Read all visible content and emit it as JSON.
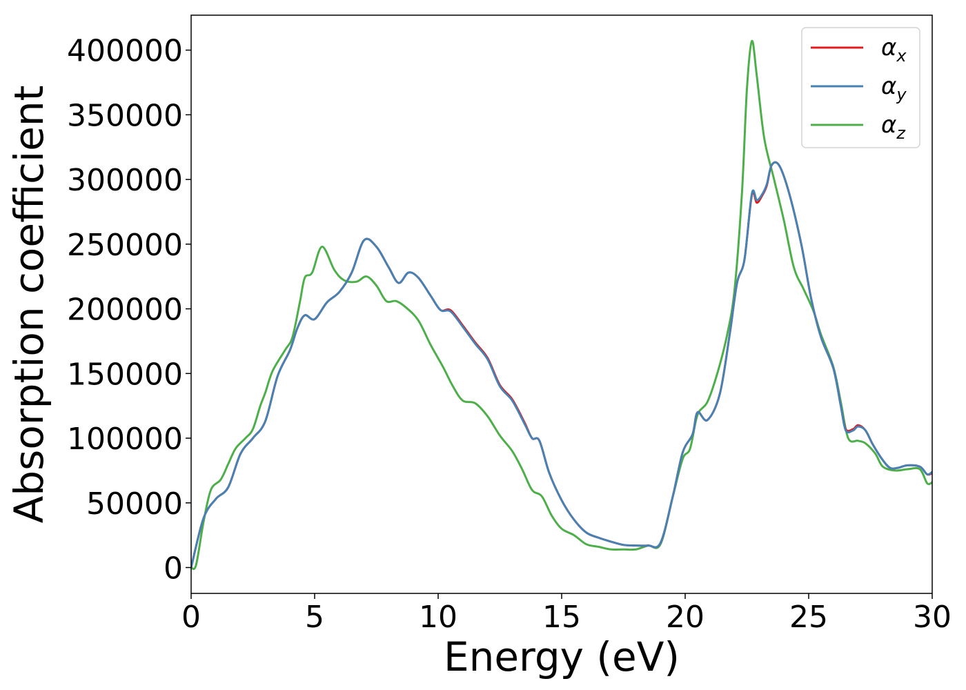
{
  "chart_data": {
    "type": "line",
    "xlabel": "Energy (eV)",
    "ylabel": "Absorption coefficient",
    "xlim": [
      0,
      30
    ],
    "ylim": [
      -20000,
      427000
    ],
    "xticks": [
      0,
      5,
      10,
      15,
      20,
      25,
      30
    ],
    "xtick_labels": [
      "0",
      "5",
      "10",
      "15",
      "20",
      "25",
      "30"
    ],
    "yticks": [
      0,
      50000,
      100000,
      150000,
      200000,
      250000,
      300000,
      350000,
      400000
    ],
    "ytick_labels": [
      "0",
      "50000",
      "100000",
      "150000",
      "200000",
      "250000",
      "300000",
      "350000",
      "400000"
    ],
    "grid": false,
    "legend_position": "top-right",
    "series": [
      {
        "name": "α",
        "sub": "x",
        "color": "#e41a1c",
        "points": [
          [
            0,
            0
          ],
          [
            0.5,
            38000
          ],
          [
            1,
            53000
          ],
          [
            1.5,
            62000
          ],
          [
            2,
            88000
          ],
          [
            2.5,
            100000
          ],
          [
            3,
            113000
          ],
          [
            3.5,
            148000
          ],
          [
            4,
            168000
          ],
          [
            4.3,
            185000
          ],
          [
            4.6,
            195000
          ],
          [
            5,
            192000
          ],
          [
            5.5,
            205000
          ],
          [
            6,
            213000
          ],
          [
            6.5,
            228000
          ],
          [
            7,
            253000
          ],
          [
            7.5,
            248000
          ],
          [
            8,
            232000
          ],
          [
            8.4,
            220000
          ],
          [
            8.8,
            228000
          ],
          [
            9.2,
            224000
          ],
          [
            9.7,
            210000
          ],
          [
            10.1,
            199000
          ],
          [
            10.5,
            199000
          ],
          [
            11,
            187000
          ],
          [
            11.5,
            174000
          ],
          [
            12,
            162000
          ],
          [
            12.5,
            141000
          ],
          [
            13,
            130000
          ],
          [
            13.5,
            112000
          ],
          [
            13.8,
            100000
          ],
          [
            14.1,
            98000
          ],
          [
            14.5,
            73000
          ],
          [
            15,
            52000
          ],
          [
            15.5,
            37000
          ],
          [
            16,
            27000
          ],
          [
            16.5,
            23000
          ],
          [
            17,
            20000
          ],
          [
            17.5,
            17500
          ],
          [
            18,
            17000
          ],
          [
            18.5,
            17000
          ],
          [
            19,
            19000
          ],
          [
            19.5,
            55000
          ],
          [
            19.9,
            89000
          ],
          [
            20.3,
            103000
          ],
          [
            20.5,
            120000
          ],
          [
            20.9,
            114000
          ],
          [
            21.4,
            134000
          ],
          [
            21.8,
            180000
          ],
          [
            22.1,
            220000
          ],
          [
            22.4,
            238000
          ],
          [
            22.7,
            288000
          ],
          [
            22.9,
            282000
          ],
          [
            23.1,
            287000
          ],
          [
            23.3,
            295000
          ],
          [
            23.5,
            311000
          ],
          [
            23.8,
            311000
          ],
          [
            24.2,
            290000
          ],
          [
            24.7,
            250000
          ],
          [
            25.1,
            208000
          ],
          [
            25.5,
            178000
          ],
          [
            26,
            154000
          ],
          [
            26.3,
            125000
          ],
          [
            26.5,
            107000
          ],
          [
            26.8,
            107000
          ],
          [
            27,
            110000
          ],
          [
            27.3,
            106000
          ],
          [
            27.6,
            95000
          ],
          [
            28,
            83000
          ],
          [
            28.3,
            77000
          ],
          [
            28.6,
            77000
          ],
          [
            29,
            79000
          ],
          [
            29.5,
            78000
          ],
          [
            29.8,
            72000
          ],
          [
            30,
            73000
          ]
        ]
      },
      {
        "name": "α",
        "sub": "y",
        "color": "#4682b4",
        "points": [
          [
            0,
            0
          ],
          [
            0.5,
            38000
          ],
          [
            1,
            53000
          ],
          [
            1.5,
            62000
          ],
          [
            2,
            88000
          ],
          [
            2.5,
            100000
          ],
          [
            3,
            113000
          ],
          [
            3.5,
            148000
          ],
          [
            4,
            168000
          ],
          [
            4.3,
            185000
          ],
          [
            4.6,
            195000
          ],
          [
            5,
            192000
          ],
          [
            5.5,
            205000
          ],
          [
            6,
            213000
          ],
          [
            6.5,
            228000
          ],
          [
            7,
            253000
          ],
          [
            7.5,
            248000
          ],
          [
            8,
            232000
          ],
          [
            8.4,
            220000
          ],
          [
            8.8,
            228000
          ],
          [
            9.2,
            224000
          ],
          [
            9.7,
            210000
          ],
          [
            10.1,
            199000
          ],
          [
            10.5,
            198000
          ],
          [
            11,
            186000
          ],
          [
            11.5,
            173000
          ],
          [
            12,
            161000
          ],
          [
            12.5,
            140000
          ],
          [
            13,
            129000
          ],
          [
            13.5,
            111000
          ],
          [
            13.8,
            100000
          ],
          [
            14.1,
            98000
          ],
          [
            14.5,
            73000
          ],
          [
            15,
            52000
          ],
          [
            15.5,
            37000
          ],
          [
            16,
            27000
          ],
          [
            16.5,
            23000
          ],
          [
            17,
            20000
          ],
          [
            17.5,
            17500
          ],
          [
            18,
            17000
          ],
          [
            18.5,
            17000
          ],
          [
            19,
            19000
          ],
          [
            19.5,
            55000
          ],
          [
            19.9,
            89000
          ],
          [
            20.3,
            103000
          ],
          [
            20.5,
            120000
          ],
          [
            20.9,
            114000
          ],
          [
            21.4,
            134000
          ],
          [
            21.8,
            180000
          ],
          [
            22.1,
            220000
          ],
          [
            22.4,
            238000
          ],
          [
            22.7,
            289000
          ],
          [
            22.9,
            284000
          ],
          [
            23.1,
            288000
          ],
          [
            23.3,
            296000
          ],
          [
            23.5,
            311000
          ],
          [
            23.8,
            311000
          ],
          [
            24.2,
            290000
          ],
          [
            24.7,
            250000
          ],
          [
            25.1,
            208000
          ],
          [
            25.5,
            178000
          ],
          [
            26,
            154000
          ],
          [
            26.3,
            125000
          ],
          [
            26.5,
            106000
          ],
          [
            26.8,
            106000
          ],
          [
            27,
            109000
          ],
          [
            27.3,
            106000
          ],
          [
            27.6,
            95000
          ],
          [
            28,
            83000
          ],
          [
            28.3,
            77000
          ],
          [
            28.6,
            77000
          ],
          [
            29,
            79000
          ],
          [
            29.5,
            78000
          ],
          [
            29.8,
            72000
          ],
          [
            30,
            74000
          ]
        ]
      },
      {
        "name": "α",
        "sub": "z",
        "color": "#4daf4a",
        "points": [
          [
            0,
            0
          ],
          [
            0.2,
            2000
          ],
          [
            0.5,
            35000
          ],
          [
            0.8,
            60000
          ],
          [
            1.2,
            68000
          ],
          [
            1.5,
            80000
          ],
          [
            1.8,
            92000
          ],
          [
            2.2,
            100000
          ],
          [
            2.5,
            107000
          ],
          [
            2.8,
            125000
          ],
          [
            3,
            135000
          ],
          [
            3.3,
            152000
          ],
          [
            3.8,
            168000
          ],
          [
            4.1,
            178000
          ],
          [
            4.4,
            205000
          ],
          [
            4.6,
            224000
          ],
          [
            4.9,
            228000
          ],
          [
            5.3,
            248000
          ],
          [
            5.8,
            230000
          ],
          [
            6.2,
            222000
          ],
          [
            6.7,
            221000
          ],
          [
            7.1,
            225000
          ],
          [
            7.5,
            218000
          ],
          [
            7.9,
            206000
          ],
          [
            8.3,
            206000
          ],
          [
            8.7,
            201000
          ],
          [
            9.2,
            191000
          ],
          [
            9.7,
            172000
          ],
          [
            10.2,
            155000
          ],
          [
            10.6,
            140000
          ],
          [
            11,
            129000
          ],
          [
            11.5,
            127000
          ],
          [
            12,
            117000
          ],
          [
            12.5,
            102000
          ],
          [
            13,
            90000
          ],
          [
            13.4,
            76000
          ],
          [
            13.8,
            60000
          ],
          [
            14.2,
            55000
          ],
          [
            14.6,
            40000
          ],
          [
            15,
            30000
          ],
          [
            15.5,
            25000
          ],
          [
            16,
            18000
          ],
          [
            16.5,
            16000
          ],
          [
            17,
            14000
          ],
          [
            17.5,
            14000
          ],
          [
            18,
            14000
          ],
          [
            18.5,
            17000
          ],
          [
            19,
            18000
          ],
          [
            19.5,
            55000
          ],
          [
            19.9,
            84000
          ],
          [
            20.2,
            92000
          ],
          [
            20.5,
            118000
          ],
          [
            20.9,
            128000
          ],
          [
            21.3,
            150000
          ],
          [
            21.7,
            180000
          ],
          [
            22,
            215000
          ],
          [
            22.3,
            290000
          ],
          [
            22.5,
            370000
          ],
          [
            22.7,
            407000
          ],
          [
            22.9,
            380000
          ],
          [
            23.2,
            332000
          ],
          [
            23.6,
            300000
          ],
          [
            24,
            268000
          ],
          [
            24.4,
            232000
          ],
          [
            24.8,
            215000
          ],
          [
            25.2,
            198000
          ],
          [
            25.5,
            180000
          ],
          [
            26,
            155000
          ],
          [
            26.3,
            128000
          ],
          [
            26.6,
            100000
          ],
          [
            27,
            98000
          ],
          [
            27.3,
            96000
          ],
          [
            27.7,
            88000
          ],
          [
            28,
            78000
          ],
          [
            28.5,
            75000
          ],
          [
            29,
            76000
          ],
          [
            29.5,
            76000
          ],
          [
            29.8,
            65000
          ],
          [
            30,
            66000
          ]
        ]
      }
    ]
  }
}
